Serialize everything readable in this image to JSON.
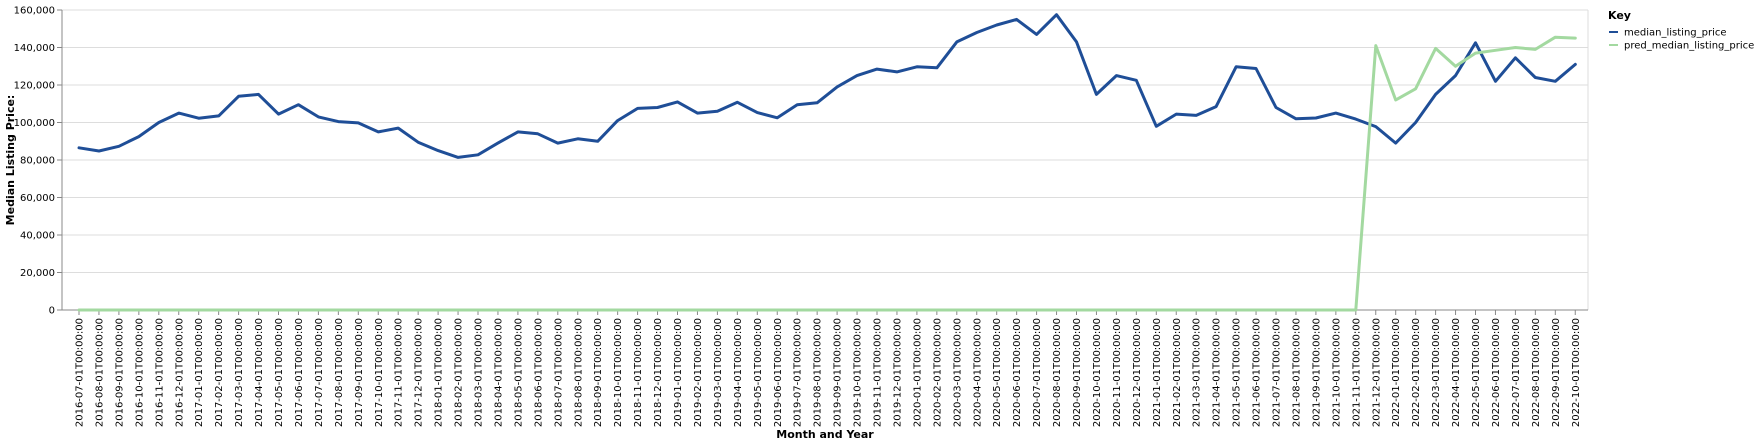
{
  "chart_data": {
    "type": "line",
    "xlabel": "Month and Year",
    "ylabel": "Median Listing Price:",
    "ylim": [
      0,
      160000
    ],
    "y_ticks": [
      "0",
      "20,000",
      "40,000",
      "60,000",
      "80,000",
      "100,000",
      "120,000",
      "140,000",
      "160,000"
    ],
    "y_tick_values": [
      0,
      20000,
      40000,
      60000,
      80000,
      100000,
      120000,
      140000,
      160000
    ],
    "grid": true,
    "legend_title": "Key",
    "legend_position": "top-right",
    "x": [
      "2016-07-01T00:00:00",
      "2016-08-01T00:00:00",
      "2016-09-01T00:00:00",
      "2016-10-01T00:00:00",
      "2016-11-01T00:00:00",
      "2016-12-01T00:00:00",
      "2017-01-01T00:00:00",
      "2017-02-01T00:00:00",
      "2017-03-01T00:00:00",
      "2017-04-01T00:00:00",
      "2017-05-01T00:00:00",
      "2017-06-01T00:00:00",
      "2017-07-01T00:00:00",
      "2017-08-01T00:00:00",
      "2017-09-01T00:00:00",
      "2017-10-01T00:00:00",
      "2017-11-01T00:00:00",
      "2017-12-01T00:00:00",
      "2018-01-01T00:00:00",
      "2018-02-01T00:00:00",
      "2018-03-01T00:00:00",
      "2018-04-01T00:00:00",
      "2018-05-01T00:00:00",
      "2018-06-01T00:00:00",
      "2018-07-01T00:00:00",
      "2018-08-01T00:00:00",
      "2018-09-01T00:00:00",
      "2018-10-01T00:00:00",
      "2018-11-01T00:00:00",
      "2018-12-01T00:00:00",
      "2019-01-01T00:00:00",
      "2019-02-01T00:00:00",
      "2019-03-01T00:00:00",
      "2019-04-01T00:00:00",
      "2019-05-01T00:00:00",
      "2019-06-01T00:00:00",
      "2019-07-01T00:00:00",
      "2019-08-01T00:00:00",
      "2019-09-01T00:00:00",
      "2019-10-01T00:00:00",
      "2019-11-01T00:00:00",
      "2019-12-01T00:00:00",
      "2020-01-01T00:00:00",
      "2020-02-01T00:00:00",
      "2020-03-01T00:00:00",
      "2020-04-01T00:00:00",
      "2020-05-01T00:00:00",
      "2020-06-01T00:00:00",
      "2020-07-01T00:00:00",
      "2020-08-01T00:00:00",
      "2020-09-01T00:00:00",
      "2020-10-01T00:00:00",
      "2020-11-01T00:00:00",
      "2020-12-01T00:00:00",
      "2021-01-01T00:00:00",
      "2021-02-01T00:00:00",
      "2021-03-01T00:00:00",
      "2021-04-01T00:00:00",
      "2021-05-01T00:00:00",
      "2021-06-01T00:00:00",
      "2021-07-01T00:00:00",
      "2021-08-01T00:00:00",
      "2021-09-01T00:00:00",
      "2021-10-01T00:00:00",
      "2021-11-01T00:00:00",
      "2021-12-01T00:00:00",
      "2022-01-01T00:00:00",
      "2022-02-01T00:00:00",
      "2022-03-01T00:00:00",
      "2022-04-01T00:00:00",
      "2022-05-01T00:00:00",
      "2022-06-01T00:00:00",
      "2022-07-01T00:00:00",
      "2022-08-01T00:00:00",
      "2022-09-01T00:00:00",
      "2022-10-01T00:00:00"
    ],
    "series": [
      {
        "name": "median_listing_price",
        "color": "#1f4e97",
        "values": [
          86500,
          84800,
          87300,
          92500,
          100000,
          105000,
          102300,
          103500,
          114000,
          115000,
          104500,
          109500,
          103000,
          100500,
          99800,
          95000,
          97000,
          89500,
          85000,
          81400,
          82800,
          89000,
          95000,
          94000,
          89000,
          91300,
          90000,
          101000,
          107500,
          108000,
          111000,
          105000,
          106000,
          110800,
          105300,
          102500,
          109500,
          110500,
          119000,
          125000,
          128500,
          127000,
          129700,
          129200,
          143000,
          148000,
          152000,
          155000,
          147000,
          157500,
          143000,
          115000,
          125000,
          122500,
          98000,
          104500,
          103800,
          108500,
          129700,
          128800,
          108000,
          102000,
          102400,
          105000,
          101800,
          97800,
          89000,
          100000,
          115000,
          125000,
          142500,
          122000,
          134500,
          124000,
          122000,
          131000
        ]
      },
      {
        "name": "pred_median_listing_price",
        "color": "#a3d9a0",
        "values": [
          0,
          0,
          0,
          0,
          0,
          0,
          0,
          0,
          0,
          0,
          0,
          0,
          0,
          0,
          0,
          0,
          0,
          0,
          0,
          0,
          0,
          0,
          0,
          0,
          0,
          0,
          0,
          0,
          0,
          0,
          0,
          0,
          0,
          0,
          0,
          0,
          0,
          0,
          0,
          0,
          0,
          0,
          0,
          0,
          0,
          0,
          0,
          0,
          0,
          0,
          0,
          0,
          0,
          0,
          0,
          0,
          0,
          0,
          0,
          0,
          0,
          0,
          0,
          0,
          0,
          141000,
          112000,
          118000,
          139500,
          130000,
          137000,
          138500,
          140000,
          139000,
          145500,
          145000
        ]
      }
    ]
  }
}
